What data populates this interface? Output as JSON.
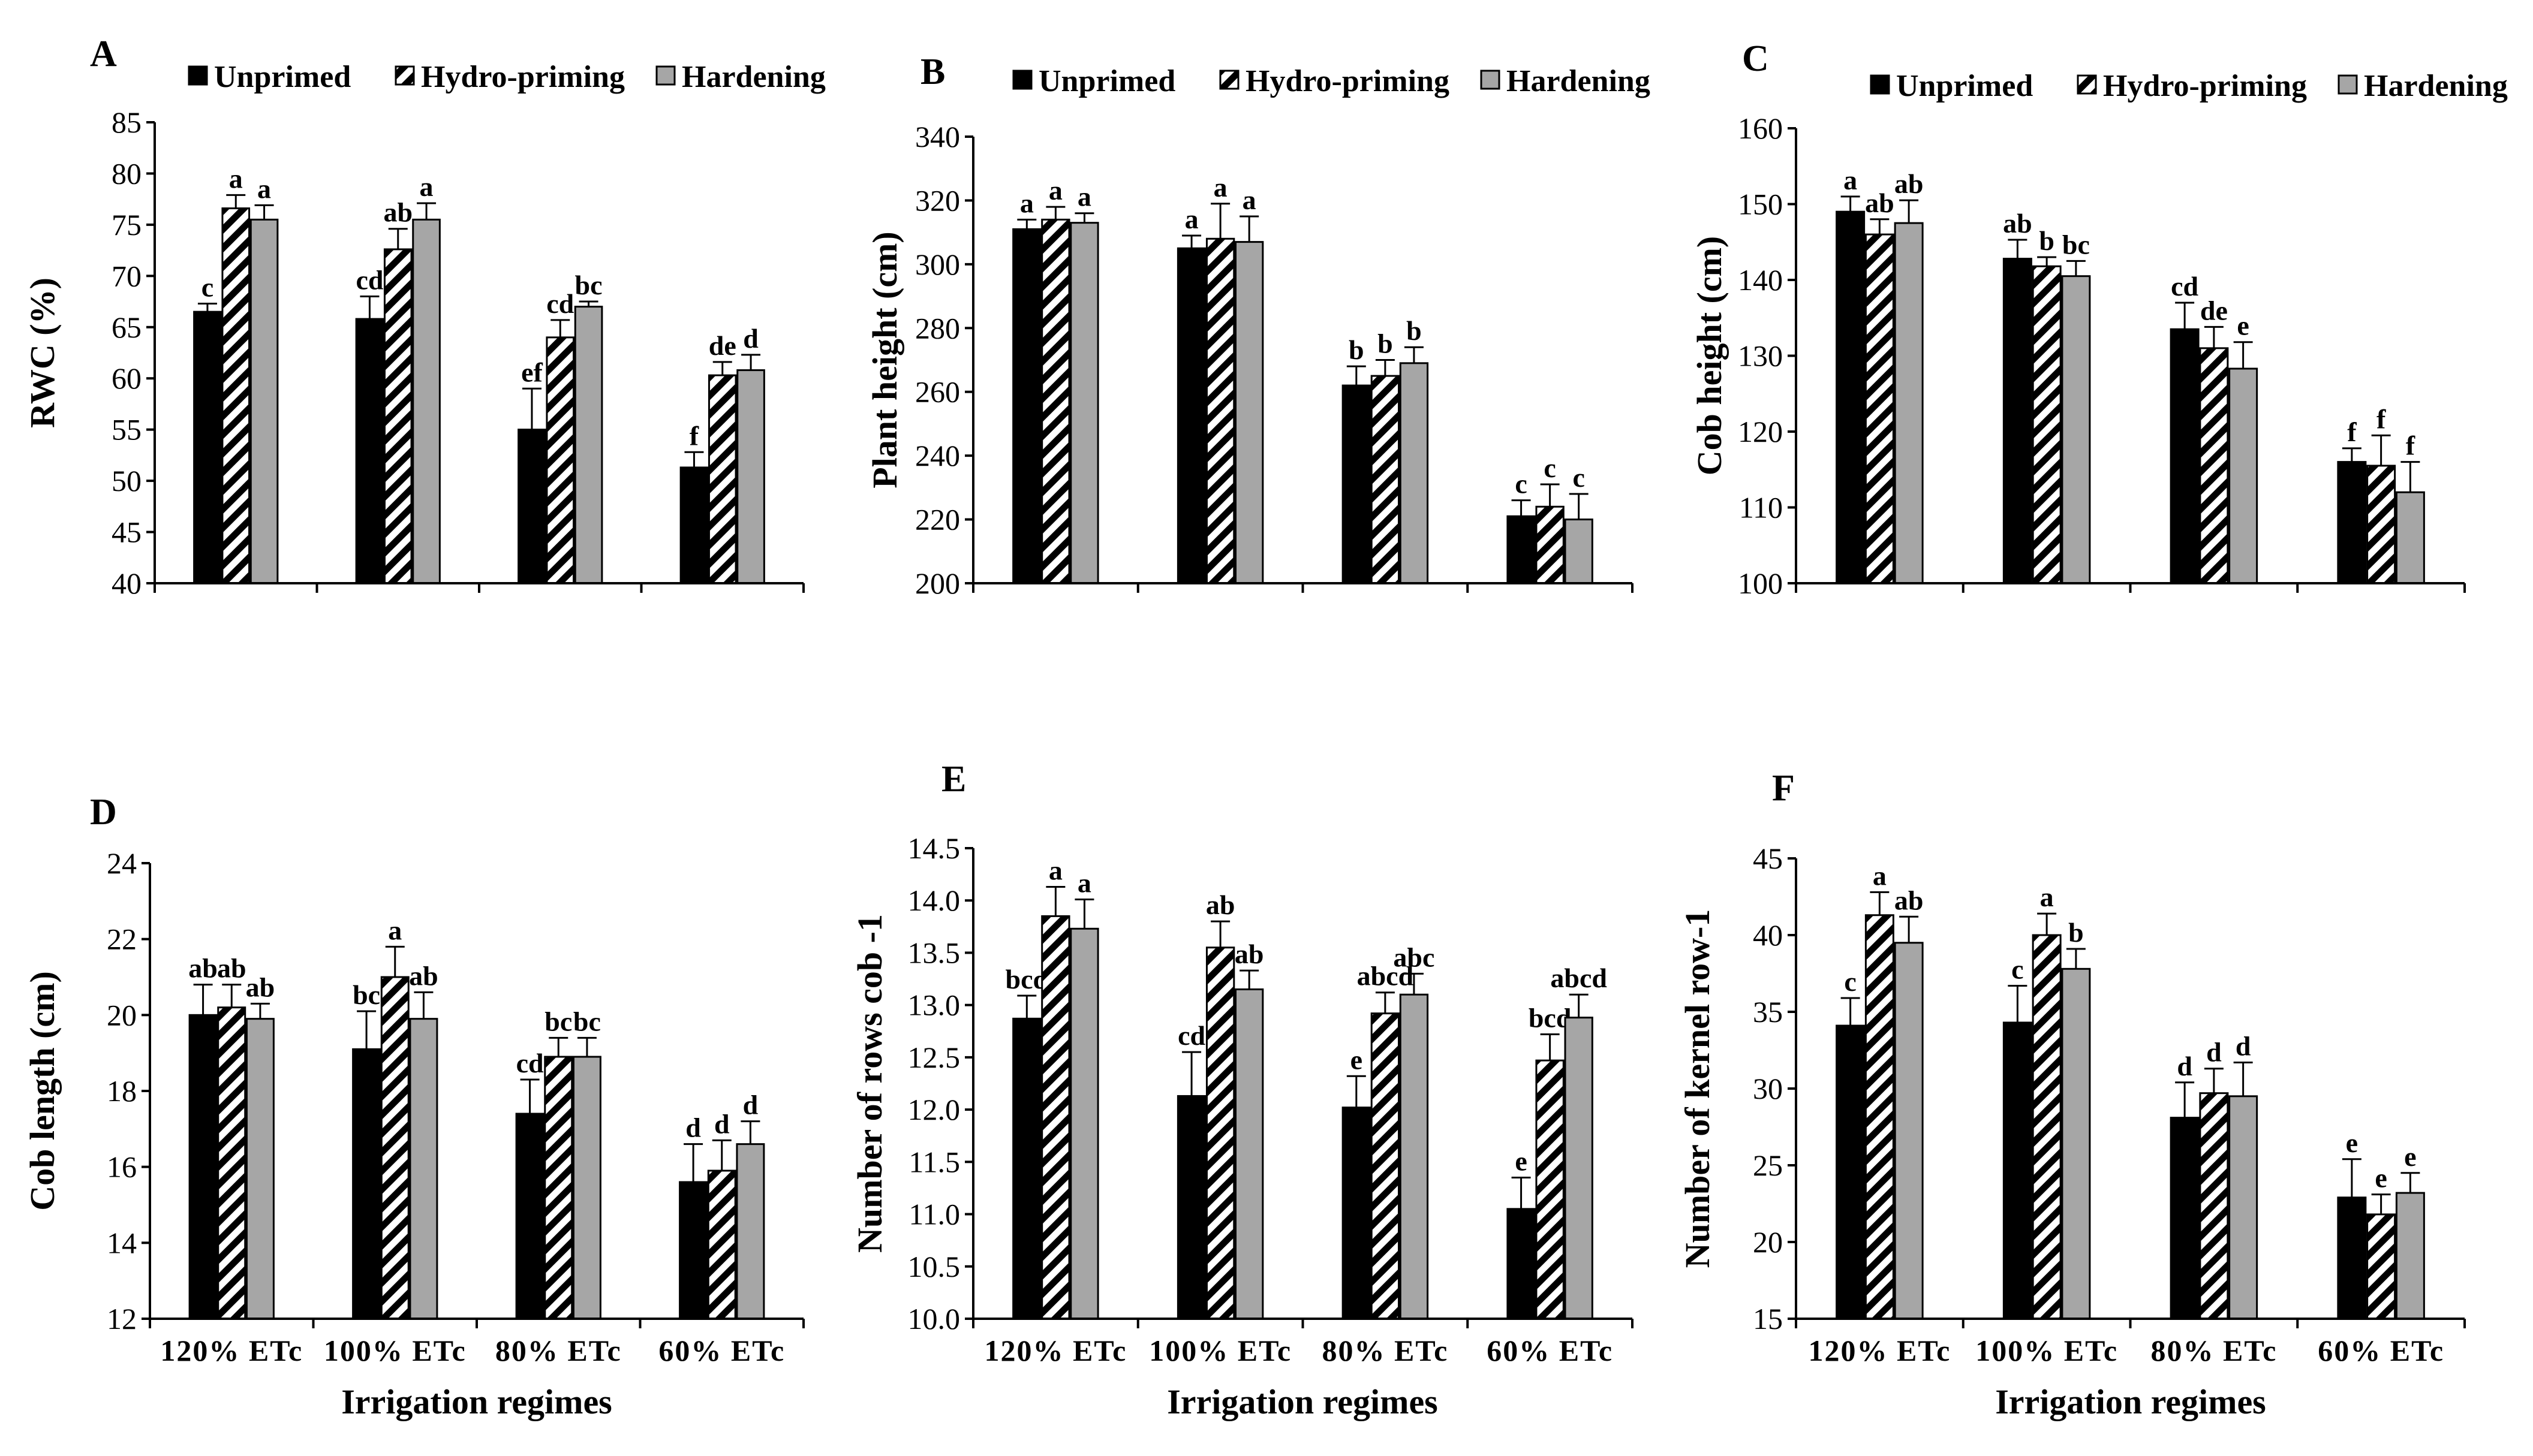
{
  "figure": {
    "legend": [
      {
        "name": "Unprimed",
        "fill": "#000000",
        "pattern": "solid"
      },
      {
        "name": "Hydro-priming",
        "fill": "#000000",
        "pattern": "diagonal-hatch"
      },
      {
        "name": "Hardening",
        "fill": "#a6a6a6",
        "pattern": "solid"
      }
    ],
    "colors": {
      "unprimed": "#000000",
      "hydro_priming": "#000000",
      "hardening": "#a6a6a6",
      "axis": "#000000"
    }
  },
  "chart_data": [
    {
      "panel": "A",
      "type": "bar",
      "categories": [
        "120% ETc",
        "100% ETc",
        "80% ETc",
        "60% ETc"
      ],
      "ylabel": "RWC (%)",
      "xlabel": "",
      "ylim": [
        40,
        85
      ],
      "yticks": [
        40,
        45,
        50,
        55,
        60,
        65,
        70,
        75,
        80,
        85
      ],
      "series": [
        {
          "name": "Unprimed",
          "values": [
            66.5,
            65.8,
            55.0,
            51.3
          ],
          "errors": [
            0.8,
            2.2,
            4.0,
            1.5
          ],
          "labels": [
            "c",
            "cd",
            "ef",
            "f"
          ]
        },
        {
          "name": "Hydro-priming",
          "values": [
            76.6,
            72.6,
            64.0,
            60.3
          ],
          "errors": [
            1.3,
            2.0,
            1.7,
            1.3
          ],
          "labels": [
            "a",
            "ab",
            "cd",
            "de"
          ]
        },
        {
          "name": "Hardening",
          "values": [
            75.5,
            75.5,
            67.0,
            60.8
          ],
          "errors": [
            1.4,
            1.6,
            0.5,
            1.5
          ],
          "labels": [
            "a",
            "a",
            "bc",
            "d"
          ]
        }
      ]
    },
    {
      "panel": "B",
      "type": "bar",
      "categories": [
        "120% ETc",
        "100% ETc",
        "80% ETc",
        "60% ETc"
      ],
      "ylabel": "Plant height (cm)",
      "xlabel": "",
      "ylim": [
        200,
        340
      ],
      "yticks": [
        200,
        220,
        240,
        260,
        280,
        300,
        320,
        340
      ],
      "series": [
        {
          "name": "Unprimed",
          "values": [
            311,
            305,
            262,
            221
          ],
          "errors": [
            3,
            4,
            6,
            5
          ],
          "labels": [
            "a",
            "a",
            "b",
            "c"
          ]
        },
        {
          "name": "Hydro-priming",
          "values": [
            314,
            308,
            265,
            224
          ],
          "errors": [
            4,
            11,
            5,
            7
          ],
          "labels": [
            "a",
            "a",
            "b",
            "c"
          ]
        },
        {
          "name": "Hardening",
          "values": [
            313,
            307,
            269,
            220
          ],
          "errors": [
            3,
            8,
            5,
            8
          ],
          "labels": [
            "a",
            "a",
            "b",
            "c"
          ]
        }
      ]
    },
    {
      "panel": "C",
      "type": "bar",
      "categories": [
        "120% ETc",
        "100% ETc",
        "80% ETc",
        "60% ETc"
      ],
      "ylabel": "Cob height (cm)",
      "xlabel": "",
      "ylim": [
        100,
        160
      ],
      "yticks": [
        100,
        110,
        120,
        130,
        140,
        150,
        160
      ],
      "series": [
        {
          "name": "Unprimed",
          "values": [
            149,
            142.8,
            133.5,
            116
          ],
          "errors": [
            2,
            2.5,
            3.5,
            1.8
          ],
          "labels": [
            "a",
            "ab",
            "cd",
            "f"
          ]
        },
        {
          "name": "Hydro-priming",
          "values": [
            146,
            141.8,
            131,
            115.5
          ],
          "errors": [
            2,
            1.2,
            2.8,
            4
          ],
          "labels": [
            "ab",
            "b",
            "de",
            "f"
          ]
        },
        {
          "name": "Hardening",
          "values": [
            147.5,
            140.5,
            128.3,
            112
          ],
          "errors": [
            3,
            2,
            3.5,
            4
          ],
          "labels": [
            "ab",
            "bc",
            "e",
            "f"
          ]
        }
      ]
    },
    {
      "panel": "D",
      "type": "bar",
      "categories": [
        "120% ETc",
        "100% ETc",
        "80% ETc",
        "60% ETc"
      ],
      "ylabel": "Cob length (cm)",
      "xlabel": "Irrigation regimes",
      "ylim": [
        12,
        24
      ],
      "yticks": [
        12,
        14,
        16,
        18,
        20,
        22,
        24
      ],
      "series": [
        {
          "name": "Unprimed",
          "values": [
            20.0,
            19.1,
            17.4,
            15.6
          ],
          "errors": [
            0.8,
            1.0,
            0.9,
            1.0
          ],
          "labels": [
            "ab",
            "bc",
            "cd",
            "d"
          ]
        },
        {
          "name": "Hydro-priming",
          "values": [
            20.2,
            21.0,
            18.9,
            15.9
          ],
          "errors": [
            0.6,
            0.8,
            0.5,
            0.8
          ],
          "labels": [
            "ab",
            "a",
            "bc",
            "d"
          ]
        },
        {
          "name": "Hardening",
          "values": [
            19.9,
            19.9,
            18.9,
            16.6
          ],
          "errors": [
            0.4,
            0.7,
            0.5,
            0.6
          ],
          "labels": [
            "ab",
            "ab",
            "bc",
            "d"
          ]
        }
      ]
    },
    {
      "panel": "E",
      "type": "bar",
      "categories": [
        "120% ETc",
        "100% ETc",
        "80% ETc",
        "60% ETc"
      ],
      "ylabel": "Number of rows cob -1",
      "xlabel": "Irrigation regimes",
      "ylim": [
        10,
        14.5
      ],
      "yticks": [
        10.0,
        10.5,
        11.0,
        11.5,
        12.0,
        12.5,
        13.0,
        13.5,
        14.0,
        14.5
      ],
      "series": [
        {
          "name": "Unprimed",
          "values": [
            12.87,
            12.13,
            12.02,
            11.05
          ],
          "errors": [
            0.22,
            0.42,
            0.3,
            0.3
          ],
          "labels": [
            "bcd",
            "cd",
            "e",
            "e"
          ]
        },
        {
          "name": "Hydro-priming",
          "values": [
            13.85,
            13.55,
            12.92,
            12.47
          ],
          "errors": [
            0.28,
            0.25,
            0.2,
            0.25
          ],
          "labels": [
            "a",
            "ab",
            "abcd",
            "bcd"
          ]
        },
        {
          "name": "Hardening",
          "values": [
            13.73,
            13.15,
            13.1,
            12.88
          ],
          "errors": [
            0.28,
            0.18,
            0.2,
            0.22
          ],
          "labels": [
            "a",
            "ab",
            "abc",
            "abcd"
          ]
        }
      ]
    },
    {
      "panel": "F",
      "type": "bar",
      "categories": [
        "120% ETc",
        "100% ETc",
        "80% ETc",
        "60% ETc"
      ],
      "ylabel": "Number of kernel row-1",
      "xlabel": "Irrigation regimes",
      "ylim": [
        15,
        45
      ],
      "yticks": [
        15,
        20,
        25,
        30,
        35,
        40,
        45
      ],
      "series": [
        {
          "name": "Unprimed",
          "values": [
            34.1,
            34.3,
            28.1,
            22.9
          ],
          "errors": [
            1.8,
            2.4,
            2.3,
            2.5
          ],
          "labels": [
            "c",
            "c",
            "d",
            "e"
          ]
        },
        {
          "name": "Hydro-priming",
          "values": [
            41.3,
            40.0,
            29.7,
            21.8
          ],
          "errors": [
            1.5,
            1.4,
            1.6,
            1.3
          ],
          "labels": [
            "a",
            "a",
            "d",
            "e"
          ]
        },
        {
          "name": "Hardening",
          "values": [
            39.5,
            37.8,
            29.5,
            23.2
          ],
          "errors": [
            1.7,
            1.3,
            2.2,
            1.3
          ],
          "labels": [
            "ab",
            "b",
            "d",
            "e"
          ]
        }
      ]
    }
  ]
}
